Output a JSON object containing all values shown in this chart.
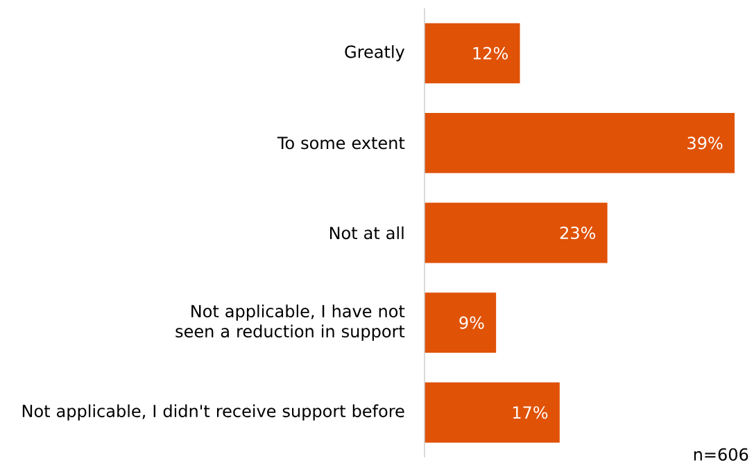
{
  "chart_data": {
    "type": "bar",
    "orientation": "horizontal",
    "categories": [
      "Greatly",
      "To some extent",
      "Not at all",
      "Not applicable, I have not seen a reduction in support",
      "Not applicable, I didn't receive support before"
    ],
    "values": [
      12,
      39,
      23,
      9,
      17
    ],
    "value_labels": [
      "12%",
      "39%",
      "23%",
      "9%",
      "17%"
    ],
    "color": "#e05206",
    "annotations": [
      "n=606"
    ]
  }
}
